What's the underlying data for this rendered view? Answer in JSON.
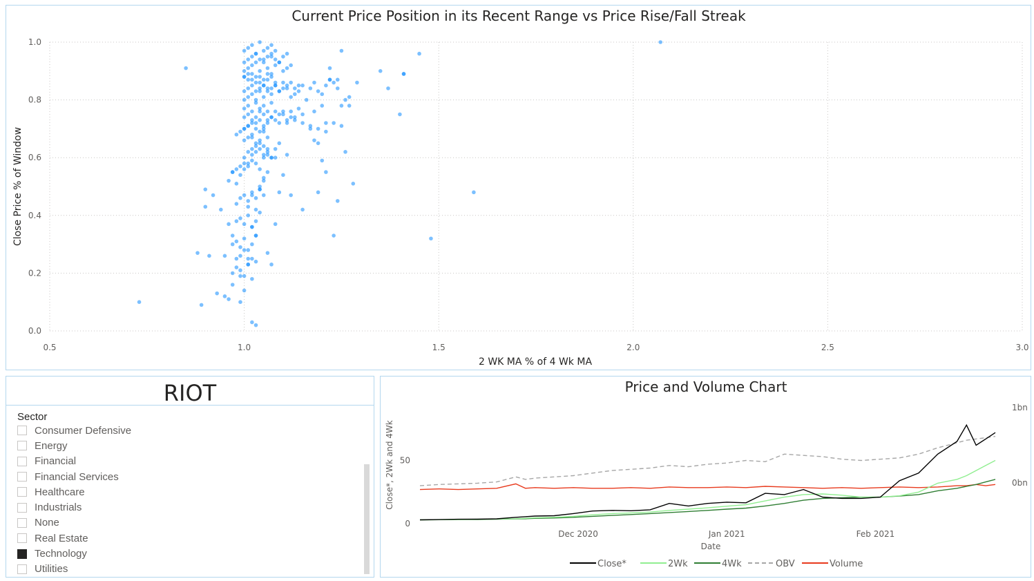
{
  "chart_data": [
    {
      "type": "scatter",
      "title": "Current Price Position in its Recent Range vs Price Rise/Fall Streak",
      "xlabel": "2 WK MA % of 4 Wk MA",
      "ylabel": "Close Price % of Window",
      "xlim": [
        0.5,
        3.0
      ],
      "ylim": [
        0.0,
        1.0
      ],
      "xticks": [
        "0.5",
        "1.0",
        "1.5",
        "2.0",
        "2.5",
        "3.0"
      ],
      "yticks": [
        "0.0",
        "0.2",
        "0.4",
        "0.6",
        "0.8",
        "1.0"
      ],
      "grid": true,
      "color": "#118dff",
      "points": {
        "x": [
          0.73,
          0.85,
          0.89,
          0.88,
          0.9,
          0.91,
          0.92,
          0.9,
          0.93,
          0.94,
          0.95,
          0.95,
          0.96,
          0.96,
          0.97,
          0.97,
          0.98,
          0.98,
          0.99,
          0.99,
          0.96,
          0.97,
          0.98,
          0.99,
          1.0,
          1.0,
          1.01,
          1.01,
          1.02,
          1.02,
          1.03,
          1.03,
          1.04,
          1.04,
          1.05,
          1.05,
          1.06,
          1.06,
          1.07,
          1.08,
          1.0,
          1.01,
          1.02,
          1.03,
          1.04,
          1.05,
          1.06,
          1.07,
          1.08,
          1.09,
          1.1,
          1.11,
          1.12,
          1.13,
          1.14,
          1.15,
          1.0,
          1.01,
          1.02,
          1.03,
          1.04,
          1.05,
          1.06,
          1.07,
          1.08,
          1.09,
          1.1,
          1.11,
          1.12,
          1.13,
          1.14,
          1.15,
          1.16,
          1.17,
          1.18,
          1.19,
          1.2,
          1.21,
          1.22,
          1.23,
          1.24,
          1.25,
          1.26,
          1.27,
          1.0,
          1.01,
          1.02,
          1.03,
          1.04,
          1.05,
          1.06,
          1.07,
          1.08,
          1.09,
          1.1,
          1.11,
          1.12,
          1.0,
          1.01,
          1.02,
          1.03,
          1.04,
          1.05,
          1.06,
          1.07,
          1.08,
          1.0,
          1.01,
          1.02,
          1.03,
          1.04,
          1.05,
          1.06,
          1.07,
          1.0,
          1.01,
          1.02,
          1.03,
          1.04,
          1.05,
          1.06,
          0.99,
          1.0,
          1.01,
          1.02,
          1.03,
          1.04,
          1.05,
          0.98,
          0.99,
          1.0,
          1.01,
          1.02,
          1.03,
          1.04,
          0.97,
          0.98,
          0.99,
          1.0,
          1.01,
          1.02,
          1.03,
          0.97,
          0.98,
          0.99,
          1.0,
          1.01,
          1.02,
          1.03,
          0.97,
          0.98,
          0.99,
          1.0,
          1.01,
          1.02,
          0.98,
          0.99,
          1.0,
          1.01,
          1.02,
          1.03,
          1.04,
          1.05,
          1.0,
          1.01,
          1.02,
          1.03,
          1.04,
          1.05,
          1.06,
          1.07,
          1.0,
          1.01,
          1.02,
          1.03,
          1.04,
          1.05,
          1.06,
          1.07,
          1.08,
          1.0,
          1.01,
          1.02,
          1.03,
          1.04,
          1.05,
          1.06,
          1.07,
          1.08,
          1.09,
          1.1,
          1.11,
          1.0,
          1.01,
          1.02,
          1.03,
          1.04,
          1.05,
          1.06,
          1.07,
          1.08,
          1.09,
          1.1,
          1.11,
          1.12,
          1.13,
          1.14,
          1.0,
          1.01,
          1.02,
          1.03,
          1.04,
          1.05,
          1.06,
          1.07,
          1.08,
          1.09,
          1.1,
          1.11,
          1.12,
          1.13,
          1.15,
          1.17,
          1.19,
          1.21,
          1.23,
          1.25,
          1.35,
          1.37,
          1.4,
          1.41,
          1.45,
          1.29,
          1.24,
          1.22,
          1.2,
          1.18,
          1.27,
          1.25,
          1.21,
          1.22,
          1.2,
          1.19,
          1.21,
          1.26,
          1.28,
          1.17,
          1.18,
          1.23,
          1.24,
          1.19,
          1.15,
          1.12,
          1.48,
          1.59,
          2.07,
          1.41,
          1.03,
          1.02,
          1.01,
          1.0,
          1.04,
          1.05,
          1.06,
          1.07,
          1.03,
          1.04,
          1.05,
          1.06,
          1.08,
          1.09,
          1.02,
          1.03,
          1.01,
          1.02,
          1.03,
          1.04,
          1.05,
          0.99,
          1.0,
          1.01,
          1.02,
          1.06,
          1.07,
          1.08,
          1.09,
          1.1,
          1.11
        ],
        "y": [
          0.1,
          0.91,
          0.09,
          0.27,
          0.49,
          0.26,
          0.47,
          0.43,
          0.13,
          0.42,
          0.12,
          0.26,
          0.11,
          0.37,
          0.16,
          0.33,
          0.25,
          0.44,
          0.19,
          0.1,
          0.52,
          0.55,
          0.51,
          0.57,
          0.56,
          0.6,
          0.58,
          0.62,
          0.61,
          0.63,
          0.62,
          0.64,
          0.63,
          0.65,
          0.64,
          0.6,
          0.61,
          0.62,
          0.6,
          0.63,
          0.7,
          0.71,
          0.72,
          0.7,
          0.73,
          0.71,
          0.72,
          0.74,
          0.73,
          0.75,
          0.76,
          0.72,
          0.74,
          0.73,
          0.77,
          0.75,
          0.8,
          0.81,
          0.82,
          0.8,
          0.83,
          0.81,
          0.84,
          0.82,
          0.85,
          0.83,
          0.86,
          0.84,
          0.81,
          0.82,
          0.83,
          0.85,
          0.8,
          0.84,
          0.86,
          0.83,
          0.82,
          0.85,
          0.87,
          0.86,
          0.84,
          0.78,
          0.8,
          0.81,
          0.9,
          0.91,
          0.92,
          0.93,
          0.9,
          0.94,
          0.91,
          0.95,
          0.92,
          0.93,
          0.9,
          0.91,
          0.92,
          0.97,
          0.98,
          0.99,
          0.96,
          1.0,
          0.97,
          0.98,
          0.99,
          0.97,
          0.88,
          0.89,
          0.87,
          0.86,
          0.88,
          0.85,
          0.87,
          0.89,
          0.66,
          0.67,
          0.68,
          0.65,
          0.66,
          0.69,
          0.67,
          0.46,
          0.47,
          0.45,
          0.48,
          0.46,
          0.49,
          0.47,
          0.38,
          0.39,
          0.37,
          0.4,
          0.36,
          0.38,
          0.41,
          0.3,
          0.31,
          0.29,
          0.32,
          0.28,
          0.3,
          0.33,
          0.2,
          0.22,
          0.21,
          0.19,
          0.23,
          0.18,
          0.24,
          0.55,
          0.56,
          0.54,
          0.58,
          0.57,
          0.59,
          0.68,
          0.69,
          0.7,
          0.71,
          0.67,
          0.72,
          0.69,
          0.7,
          0.77,
          0.78,
          0.76,
          0.79,
          0.77,
          0.78,
          0.76,
          0.79,
          0.88,
          0.87,
          0.89,
          0.88,
          0.86,
          0.87,
          0.89,
          0.88,
          0.86,
          0.93,
          0.94,
          0.95,
          0.96,
          0.94,
          0.93,
          0.95,
          0.96,
          0.94,
          0.93,
          0.95,
          0.96,
          0.83,
          0.84,
          0.85,
          0.83,
          0.84,
          0.85,
          0.83,
          0.84,
          0.85,
          0.83,
          0.84,
          0.85,
          0.86,
          0.84,
          0.85,
          0.74,
          0.75,
          0.73,
          0.74,
          0.76,
          0.75,
          0.73,
          0.74,
          0.76,
          0.72,
          0.75,
          0.73,
          0.76,
          0.74,
          0.72,
          0.71,
          0.7,
          0.69,
          0.72,
          0.71,
          0.9,
          0.84,
          0.75,
          0.89,
          0.96,
          0.86,
          0.87,
          0.91,
          0.78,
          0.76,
          0.78,
          0.97,
          0.72,
          0.87,
          0.59,
          0.65,
          0.55,
          0.62,
          0.51,
          0.7,
          0.66,
          0.33,
          0.45,
          0.48,
          0.42,
          0.47,
          0.32,
          0.48,
          1.0,
          0.89,
          0.02,
          0.03,
          0.25,
          0.14,
          0.5,
          0.53,
          0.55,
          0.6,
          0.58,
          0.56,
          0.61,
          0.63,
          0.6,
          0.65,
          0.36,
          0.33,
          0.43,
          0.47,
          0.42,
          0.49,
          0.52,
          0.26,
          0.28,
          0.23,
          0.25,
          0.27,
          0.23,
          0.37,
          0.48,
          0.54,
          0.61
        ]
      }
    },
    {
      "type": "line",
      "title": "Price and Volume Chart",
      "xlabel": "Date",
      "ylabel": "Close*, 2Wk and 4Wk",
      "x": [
        "2020-10-29",
        "2020-11-02",
        "2020-11-06",
        "2020-11-10",
        "2020-11-14",
        "2020-11-18",
        "2020-11-20",
        "2020-11-22",
        "2020-11-26",
        "2020-11-30",
        "2020-12-04",
        "2020-12-08",
        "2020-12-12",
        "2020-12-16",
        "2020-12-20",
        "2020-12-24",
        "2020-12-28",
        "2021-01-01",
        "2021-01-05",
        "2021-01-09",
        "2021-01-13",
        "2021-01-17",
        "2021-01-21",
        "2021-01-25",
        "2021-01-29",
        "2021-02-02",
        "2021-02-06",
        "2021-02-10",
        "2021-02-14",
        "2021-02-18",
        "2021-02-20",
        "2021-02-22",
        "2021-02-24",
        "2021-02-26"
      ],
      "xticks": [
        "Dec 2020",
        "Jan 2021",
        "Feb 2021"
      ],
      "xtick_dates": [
        "2020-12-01",
        "2021-01-01",
        "2021-02-01"
      ],
      "ylim": [
        0,
        100
      ],
      "yticks": [
        "0",
        "50"
      ],
      "y2ticks": [
        "0bn",
        "1bn"
      ],
      "grid": false,
      "legend_position": "bottom",
      "series": [
        {
          "name": "Close*",
          "color": "#000000",
          "dash": false,
          "axis": "left",
          "values": [
            3,
            3.2,
            3.5,
            3.6,
            3.8,
            5,
            5.5,
            6,
            6.3,
            8,
            10,
            10.5,
            10.2,
            11,
            16,
            14,
            16,
            17,
            16.5,
            24,
            23,
            27,
            21,
            20,
            20,
            21,
            34,
            40,
            55,
            65,
            78,
            62,
            67,
            72
          ]
        },
        {
          "name": "2Wk",
          "color": "#90ee90",
          "dash": false,
          "axis": "left",
          "values": [
            3,
            3.1,
            3.3,
            3.5,
            3.6,
            3.9,
            4.2,
            4.6,
            5,
            5.8,
            7,
            8,
            8.5,
            9.2,
            10.5,
            11.5,
            12.5,
            13.8,
            15,
            18,
            21,
            23,
            23.5,
            22.5,
            21,
            21,
            22,
            25,
            32,
            35,
            38,
            42,
            46,
            50
          ]
        },
        {
          "name": "4Wk",
          "color": "#2e7d32",
          "dash": false,
          "axis": "left",
          "values": [
            3,
            3.1,
            3.2,
            3.3,
            3.5,
            3.7,
            3.9,
            4.2,
            4.5,
            5,
            5.8,
            6.5,
            7.2,
            8,
            8.8,
            9.6,
            10.5,
            11.5,
            12.3,
            14,
            16,
            18.5,
            20,
            20.5,
            21,
            21,
            21.8,
            23,
            26,
            28,
            29.5,
            31,
            33,
            35
          ]
        },
        {
          "name": "OBV",
          "color": "#a6a6a6",
          "dash": true,
          "axis": "right",
          "values": [
            30,
            31,
            31.5,
            32,
            33,
            37,
            35,
            36,
            37,
            38,
            40,
            42,
            43,
            44,
            46,
            45,
            47,
            48,
            50,
            49,
            55,
            54,
            53,
            51,
            50,
            51,
            52,
            55,
            60,
            64,
            66,
            67,
            68,
            69
          ]
        },
        {
          "name": "Volume",
          "color": "#e8391c",
          "dash": false,
          "axis": "right",
          "values": [
            27,
            27.5,
            27,
            27.5,
            28,
            31.5,
            28,
            28.5,
            28,
            28.5,
            28,
            28,
            28.5,
            28,
            29,
            28.5,
            28.5,
            29,
            28.5,
            29.5,
            29,
            28.5,
            28,
            28.5,
            28,
            28.5,
            29,
            28.5,
            29,
            30,
            30,
            31,
            30,
            31
          ]
        }
      ]
    }
  ],
  "ticker": "RIOT",
  "slicer": {
    "title": "Sector",
    "items": [
      {
        "label": "Consumer Defensive",
        "checked": false
      },
      {
        "label": "Energy",
        "checked": false
      },
      {
        "label": "Financial",
        "checked": false
      },
      {
        "label": "Financial Services",
        "checked": false
      },
      {
        "label": "Healthcare",
        "checked": false
      },
      {
        "label": "Industrials",
        "checked": false
      },
      {
        "label": "None",
        "checked": false
      },
      {
        "label": "Real Estate",
        "checked": false
      },
      {
        "label": "Technology",
        "checked": true
      },
      {
        "label": "Utilities",
        "checked": false
      }
    ]
  }
}
